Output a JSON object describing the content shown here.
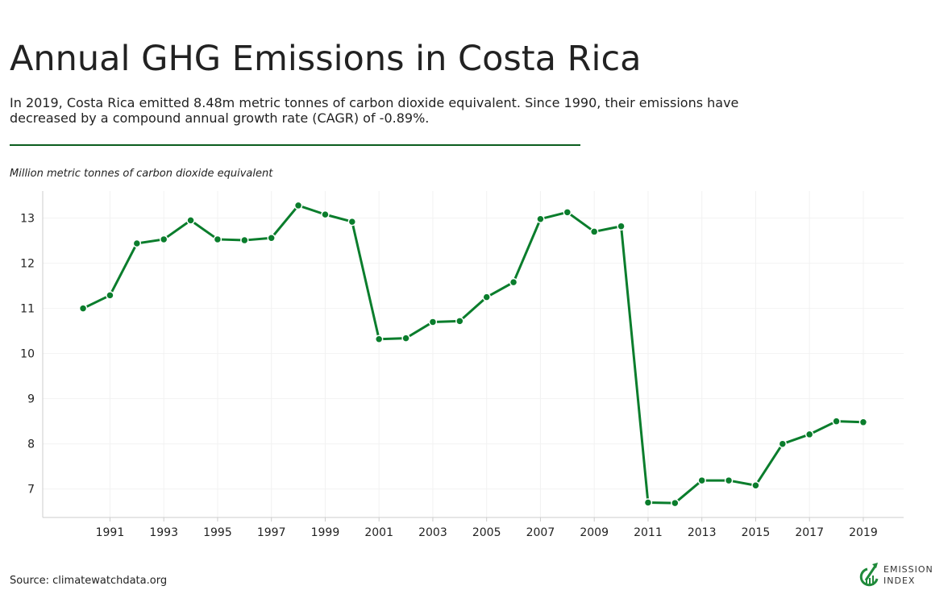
{
  "title": "Annual GHG Emissions in Costa Rica",
  "subtitle": "In 2019, Costa Rica emitted 8.48m metric tonnes of carbon dioxide equivalent. Since 1990, their emissions have decreased by a compound annual growth rate (CAGR) of -0.89%.",
  "source": "Source: climatewatchdata.org",
  "logo": {
    "line1": "EMISSION",
    "line2": "INDEX"
  },
  "colors": {
    "line": "#0a7d2c",
    "rule": "#0b5d1e"
  },
  "chart_data": {
    "type": "line",
    "title": "Annual GHG Emissions in Costa Rica",
    "ylabel": "Million metric tonnes of carbon dioxide equivalent",
    "xlabel": "",
    "x": [
      1990,
      1991,
      1992,
      1993,
      1994,
      1995,
      1996,
      1997,
      1998,
      1999,
      2000,
      2001,
      2002,
      2003,
      2004,
      2005,
      2006,
      2007,
      2008,
      2009,
      2010,
      2011,
      2012,
      2013,
      2014,
      2015,
      2016,
      2017,
      2018,
      2019
    ],
    "values": [
      11.0,
      11.29,
      12.44,
      12.53,
      12.95,
      12.53,
      12.51,
      12.56,
      13.28,
      13.08,
      12.92,
      10.32,
      10.34,
      10.7,
      10.72,
      11.25,
      11.58,
      12.98,
      13.13,
      12.7,
      12.82,
      6.7,
      6.69,
      7.19,
      7.19,
      7.08,
      8.0,
      8.21,
      8.5,
      8.48
    ],
    "xticks": [
      1991,
      1993,
      1995,
      1997,
      1999,
      2001,
      2003,
      2005,
      2007,
      2009,
      2011,
      2013,
      2015,
      2017,
      2019
    ],
    "yticks": [
      7,
      8,
      9,
      10,
      11,
      12,
      13
    ],
    "xlim": [
      1988.5,
      2020.5
    ],
    "ylim": [
      6.37,
      13.6
    ],
    "grid": true
  }
}
